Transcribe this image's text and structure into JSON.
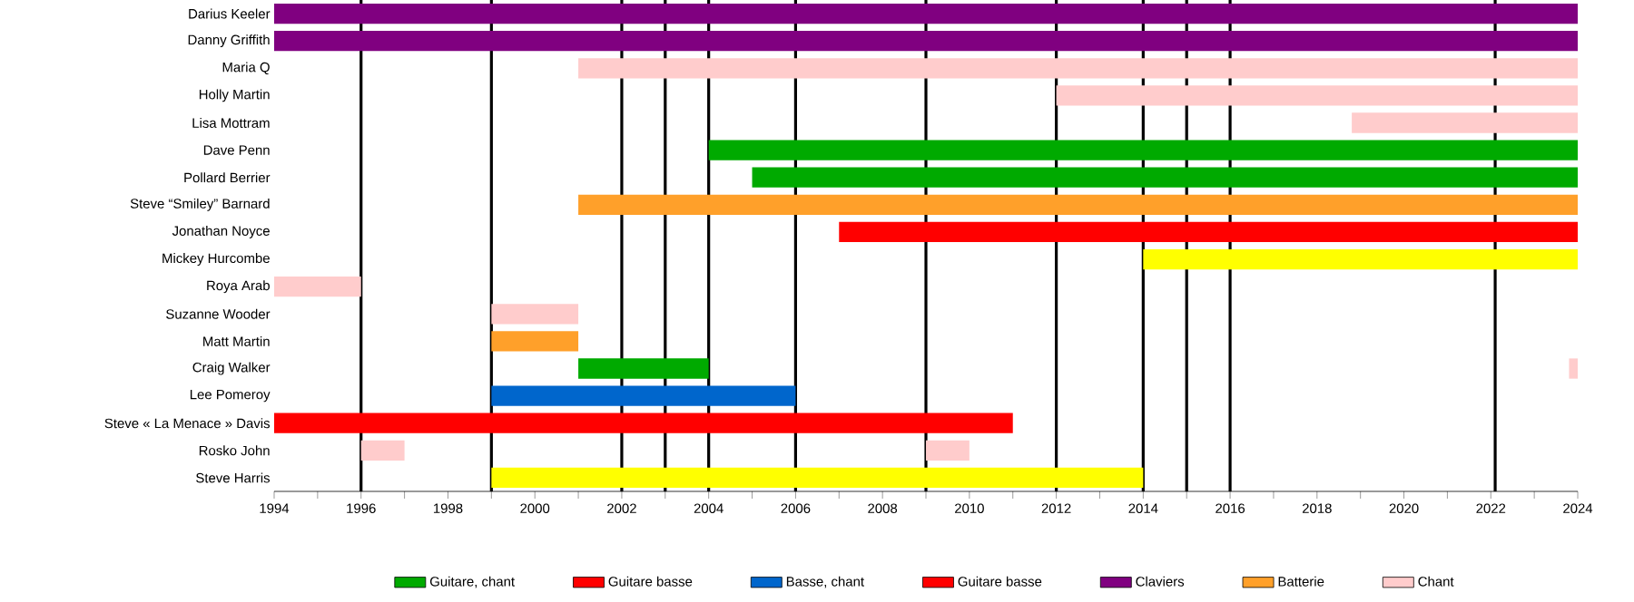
{
  "chart_data": {
    "type": "bar",
    "orientation": "horizontal",
    "categories": [
      "Darius Keeler",
      "Danny Griffith",
      "Maria Q",
      "Holly Martin",
      "Lisa Mottram",
      "Dave Penn",
      "Pollard Berrier",
      "Steve “Smiley” Barnard",
      "Jonathan Noyce",
      "Mickey Hurcombe",
      "Roya Arab",
      "Suzanne Wooder",
      "Matt Martin",
      "Craig Walker",
      "Lee Pomeroy",
      "Steve « La Menace » Davis",
      "Rosko John",
      "Steve Harris"
    ],
    "series": [
      {
        "name": "Guitare, chant",
        "color": "#00aa00",
        "base": [
          null,
          null,
          null,
          null,
          null,
          2004,
          2005,
          null,
          null,
          null,
          null,
          null,
          null,
          2001,
          null,
          null,
          null,
          null
        ],
        "values": [
          null,
          null,
          null,
          null,
          null,
          20,
          19,
          null,
          null,
          null,
          null,
          null,
          null,
          3,
          null,
          null,
          null,
          null
        ]
      },
      {
        "name": "Guitare basse",
        "color": "#ff0000",
        "base": [
          null,
          null,
          null,
          null,
          null,
          null,
          null,
          null,
          null,
          null,
          null,
          null,
          null,
          null,
          null,
          1994,
          null,
          null
        ],
        "values": [
          null,
          null,
          null,
          null,
          null,
          null,
          null,
          null,
          null,
          null,
          null,
          null,
          null,
          null,
          null,
          17,
          null,
          null
        ]
      },
      {
        "name": "Basse, chant",
        "color": "#0066cc",
        "base": [
          null,
          null,
          null,
          null,
          null,
          null,
          null,
          null,
          null,
          null,
          null,
          null,
          null,
          null,
          1999,
          null,
          null,
          null
        ],
        "values": [
          null,
          null,
          null,
          null,
          null,
          null,
          null,
          null,
          null,
          null,
          null,
          null,
          null,
          null,
          7,
          null,
          null,
          null
        ]
      },
      {
        "name": "Guitare basse",
        "color": "#ff0000",
        "base": [
          null,
          null,
          null,
          null,
          null,
          null,
          null,
          null,
          2007,
          null,
          null,
          null,
          null,
          null,
          null,
          null,
          null,
          null
        ],
        "values": [
          null,
          null,
          null,
          null,
          null,
          null,
          null,
          null,
          17,
          null,
          null,
          null,
          null,
          null,
          null,
          null,
          null,
          null
        ]
      },
      {
        "name": "Claviers",
        "color": "#800080",
        "base": [
          1994,
          1994,
          null,
          null,
          null,
          null,
          null,
          null,
          null,
          null,
          null,
          null,
          null,
          null,
          null,
          null,
          null,
          null
        ],
        "values": [
          30,
          30,
          null,
          null,
          null,
          null,
          null,
          null,
          null,
          null,
          null,
          null,
          null,
          null,
          null,
          null,
          null,
          null
        ]
      },
      {
        "name": "Batterie",
        "color": "#ffa02a",
        "base": [
          null,
          null,
          null,
          null,
          null,
          null,
          null,
          2001,
          null,
          null,
          null,
          null,
          1999,
          null,
          null,
          null,
          null,
          null
        ],
        "values": [
          null,
          null,
          null,
          null,
          null,
          null,
          null,
          23,
          null,
          null,
          null,
          null,
          2,
          null,
          null,
          null,
          null,
          null
        ]
      },
      {
        "name": "Chant",
        "color": "#ffcccc",
        "base": [
          null,
          null,
          2001,
          2012,
          2018.8,
          null,
          null,
          null,
          null,
          null,
          1994,
          1999,
          null,
          null,
          null,
          null,
          1996,
          null
        ],
        "values": [
          null,
          null,
          23,
          12,
          5.2,
          null,
          null,
          null,
          null,
          null,
          2,
          2,
          null,
          null,
          null,
          null,
          1,
          null
        ]
      },
      {
        "color": "#ffff00",
        "base": [
          null,
          null,
          null,
          null,
          null,
          null,
          null,
          null,
          null,
          2014,
          null,
          null,
          null,
          null,
          null,
          null,
          null,
          1999
        ],
        "values": [
          null,
          null,
          null,
          null,
          null,
          null,
          null,
          null,
          null,
          10,
          null,
          null,
          null,
          null,
          null,
          null,
          null,
          15
        ]
      },
      {
        "color": "#ffcccc",
        "base": [
          null,
          null,
          null,
          null,
          null,
          null,
          null,
          null,
          null,
          null,
          null,
          null,
          null,
          2023.8,
          null,
          null,
          2009,
          null
        ],
        "values": [
          null,
          null,
          null,
          null,
          null,
          null,
          null,
          null,
          null,
          null,
          null,
          null,
          null,
          0.2,
          null,
          null,
          1,
          null
        ]
      }
    ],
    "xlim": [
      1994,
      2024
    ],
    "xticks": [
      1994,
      {
        "value": 1995,
        "label": null
      },
      1996,
      {
        "value": 1997,
        "label": null
      },
      1998,
      {
        "value": 1999,
        "label": null
      },
      2000,
      {
        "value": 2001,
        "label": null
      },
      2002,
      {
        "value": 2003,
        "label": null
      },
      2004,
      {
        "value": 2005,
        "label": null
      },
      2006,
      {
        "value": 2007,
        "label": null
      },
      2008,
      {
        "value": 2009,
        "label": null
      },
      2010,
      {
        "value": 2011,
        "label": null
      },
      2012,
      {
        "value": 2013,
        "label": null
      },
      2014,
      {
        "value": 2015,
        "label": null
      },
      2016,
      {
        "value": 2017,
        "label": null
      },
      2018,
      {
        "value": 2019,
        "label": null
      },
      2020,
      {
        "value": 2021,
        "label": null
      },
      2022,
      {
        "value": 2023,
        "label": null
      },
      2024
    ],
    "ref_lines": [
      {
        "axis": "x",
        "value": 1996,
        "color": "#000000"
      },
      {
        "axis": "x",
        "value": 1999,
        "color": "#000000"
      },
      {
        "axis": "x",
        "value": 2002,
        "color": "#000000"
      },
      {
        "axis": "x",
        "value": 2003,
        "color": "#000000"
      },
      {
        "axis": "x",
        "value": 2004,
        "color": "#000000"
      },
      {
        "axis": "x",
        "value": 2006,
        "color": "#000000"
      },
      {
        "axis": "x",
        "value": 2009,
        "color": "#000000"
      },
      {
        "axis": "x",
        "value": 2012,
        "color": "#000000"
      },
      {
        "axis": "x",
        "value": 2014,
        "color": "#000000"
      },
      {
        "axis": "x",
        "value": 2015,
        "color": "#000000"
      },
      {
        "axis": "x",
        "value": 2016,
        "color": "#000000"
      },
      {
        "axis": "x",
        "value": 2022.1,
        "color": "#000000"
      }
    ],
    "grid": false,
    "legend": "bottom"
  }
}
